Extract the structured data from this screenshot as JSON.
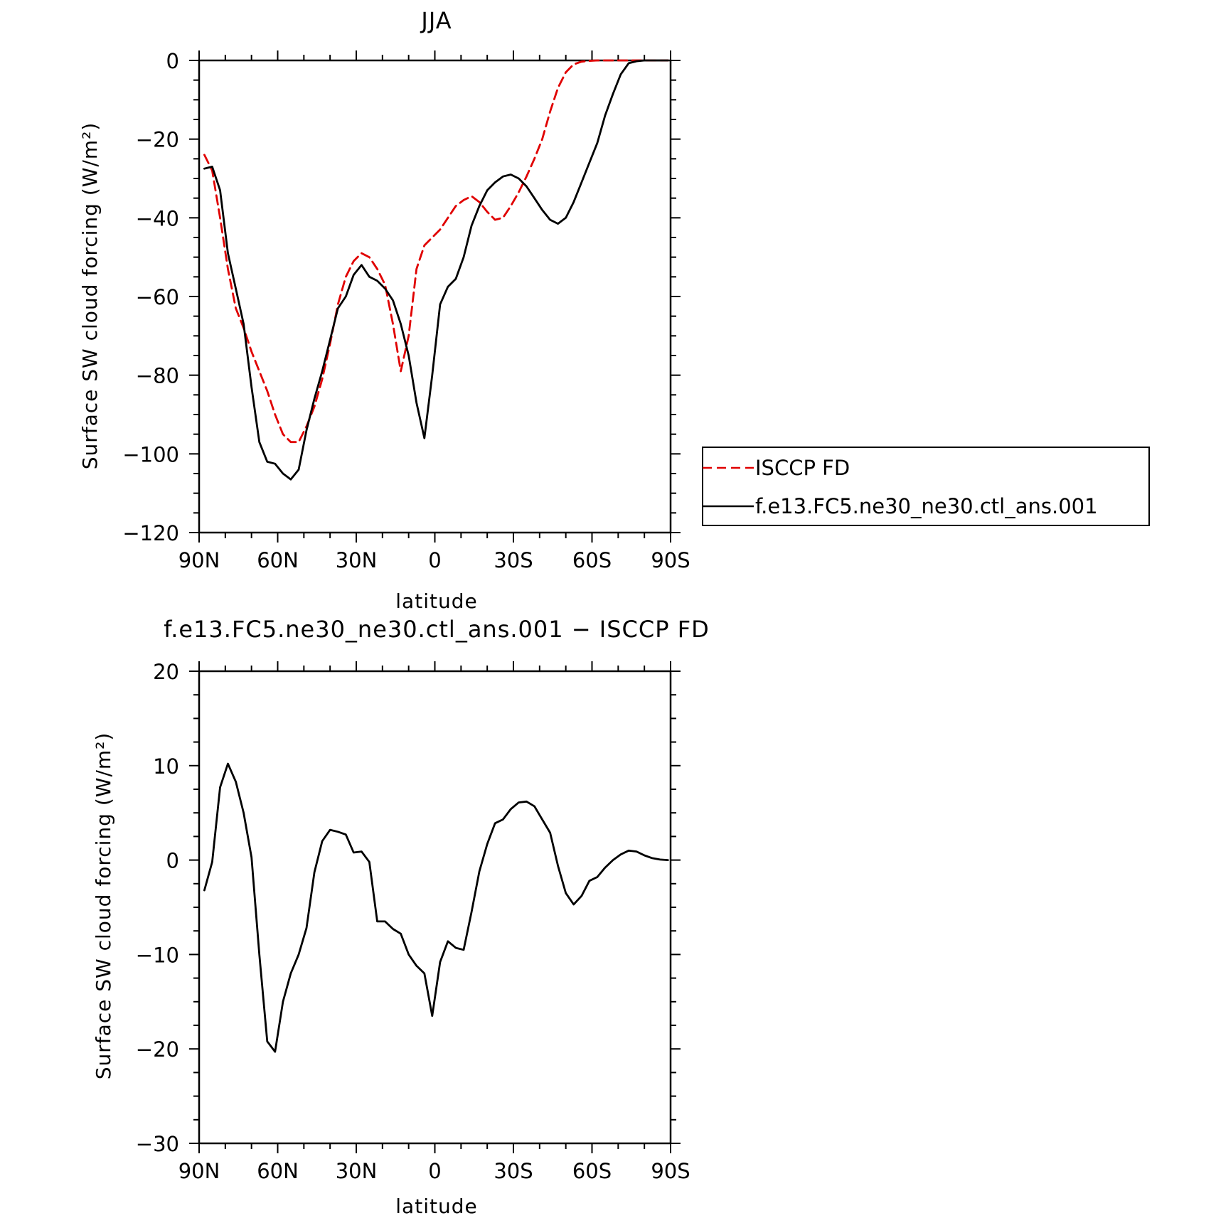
{
  "chart_data": [
    {
      "type": "line",
      "title": "JJA",
      "xlabel": "latitude",
      "ylabel": "Surface SW cloud forcing (W/m²)",
      "xlim": [
        90,
        -90
      ],
      "ylim": [
        -120,
        0
      ],
      "x_ticks": [
        90,
        60,
        30,
        0,
        -30,
        -60,
        -90
      ],
      "x_tick_labels": [
        "90N",
        "60N",
        "30N",
        "0",
        "30S",
        "60S",
        "90S"
      ],
      "y_ticks": [
        0,
        -20,
        -40,
        -60,
        -80,
        -100,
        -120
      ],
      "y_tick_labels": [
        "0",
        "−20",
        "−40",
        "−60",
        "−80",
        "−100",
        "−120"
      ],
      "legend_position": "right",
      "series": [
        {
          "name": "ISCCP FD",
          "color": "#e00000",
          "dash": "dashed",
          "x": [
            88,
            85,
            82,
            79,
            76,
            73,
            70,
            67,
            64,
            61,
            58,
            55,
            52,
            49,
            46,
            43,
            40,
            37,
            34,
            31,
            28,
            25,
            22,
            19,
            16,
            13,
            10,
            7,
            4,
            1,
            -2,
            -5,
            -8,
            -11,
            -14,
            -17,
            -20,
            -23,
            -26,
            -29,
            -32,
            -35,
            -38,
            -41,
            -44,
            -47,
            -50,
            -53,
            -56,
            -59,
            -62,
            -65,
            -68,
            -71,
            -74,
            -77,
            -80,
            -83,
            -86,
            -89
          ],
          "y": [
            -24,
            -28,
            -40,
            -53,
            -63,
            -68,
            -74,
            -79,
            -84,
            -90,
            -95,
            -97,
            -97,
            -93,
            -88,
            -81,
            -72,
            -62,
            -55,
            -51,
            -49,
            -50,
            -53,
            -57,
            -67,
            -79,
            -70,
            -53,
            -47,
            -45,
            -43,
            -40,
            -37,
            -35.5,
            -34.5,
            -36,
            -38.5,
            -40.5,
            -40,
            -37,
            -33.5,
            -29.5,
            -25,
            -20,
            -13,
            -7,
            -3,
            -1,
            -0.3,
            -0.1,
            0,
            0,
            0,
            0,
            0,
            0,
            0,
            0,
            0,
            0
          ]
        },
        {
          "name": "f.e13.FC5.ne30_ne30.ctl_ans.001",
          "color": "#000000",
          "dash": "solid",
          "x": [
            88,
            85,
            82,
            79,
            76,
            73,
            70,
            67,
            64,
            61,
            58,
            55,
            52,
            49,
            46,
            43,
            40,
            37,
            34,
            31,
            28,
            25,
            22,
            19,
            16,
            13,
            10,
            7,
            4,
            1,
            -2,
            -5,
            -8,
            -11,
            -14,
            -17,
            -20,
            -23,
            -26,
            -29,
            -32,
            -35,
            -38,
            -41,
            -44,
            -47,
            -50,
            -53,
            -56,
            -59,
            -62,
            -65,
            -68,
            -71,
            -74,
            -77,
            -80,
            -83,
            -86,
            -89
          ],
          "y": [
            -27.5,
            -27,
            -33,
            -49,
            -58,
            -67,
            -83,
            -97,
            -102,
            -102.5,
            -105,
            -106.5,
            -104,
            -94,
            -86,
            -79,
            -71,
            -63,
            -60,
            -54.5,
            -52,
            -55,
            -56,
            -58,
            -61,
            -67,
            -75,
            -87,
            -96,
            -80,
            -62,
            -57.5,
            -55.5,
            -50,
            -42,
            -37,
            -33,
            -31,
            -29.5,
            -29,
            -30,
            -32,
            -35,
            -38,
            -40.5,
            -41.5,
            -40,
            -36,
            -31,
            -26,
            -21,
            -14,
            -8.5,
            -3.5,
            -0.7,
            -0.2,
            0,
            0,
            0,
            0
          ]
        }
      ]
    },
    {
      "type": "line",
      "title": "f.e13.FC5.ne30_ne30.ctl_ans.001 − ISCCP FD",
      "xlabel": "latitude",
      "ylabel": "Surface SW cloud forcing (W/m²)",
      "xlim": [
        90,
        -90
      ],
      "ylim": [
        -30,
        20
      ],
      "x_ticks": [
        90,
        60,
        30,
        0,
        -30,
        -60,
        -90
      ],
      "x_tick_labels": [
        "90N",
        "60N",
        "30N",
        "0",
        "30S",
        "60S",
        "90S"
      ],
      "y_ticks": [
        20,
        10,
        0,
        -10,
        -20,
        -30
      ],
      "y_tick_labels": [
        "20",
        "10",
        "0",
        "−10",
        "−20",
        "−30"
      ],
      "series": [
        {
          "color": "#000000",
          "dash": "solid",
          "x": [
            88,
            85,
            82,
            79,
            76,
            73,
            70,
            67,
            64,
            61,
            58,
            55,
            52,
            49,
            46,
            43,
            40,
            37,
            34,
            31,
            28,
            25,
            22,
            19,
            16,
            13,
            10,
            7,
            4,
            1,
            -2,
            -5,
            -8,
            -11,
            -14,
            -17,
            -20,
            -23,
            -26,
            -29,
            -32,
            -35,
            -38,
            -41,
            -44,
            -47,
            -50,
            -53,
            -56,
            -59,
            -62,
            -65,
            -68,
            -71,
            -74,
            -77,
            -80,
            -83,
            -86,
            -89
          ],
          "y": [
            -3.2,
            -0.2,
            7.7,
            10.2,
            8.3,
            5,
            0.3,
            -10,
            -19.2,
            -20.3,
            -15,
            -12,
            -10,
            -7.2,
            -1.3,
            2,
            3.2,
            3,
            2.7,
            0.8,
            0.9,
            -0.2,
            -6.5,
            -6.5,
            -7.3,
            -7.8,
            -10,
            -11.2,
            -12,
            -16.5,
            -10.8,
            -8.6,
            -9.3,
            -9.5,
            -5.5,
            -1.2,
            1.7,
            3.9,
            4.3,
            5.4,
            6.1,
            6.2,
            5.7,
            4.3,
            2.9,
            -0.6,
            -3.5,
            -4.7,
            -3.8,
            -2.2,
            -1.8,
            -0.8,
            0,
            0.6,
            1,
            0.9,
            0.5,
            0.2,
            0.05,
            0
          ]
        }
      ]
    }
  ]
}
